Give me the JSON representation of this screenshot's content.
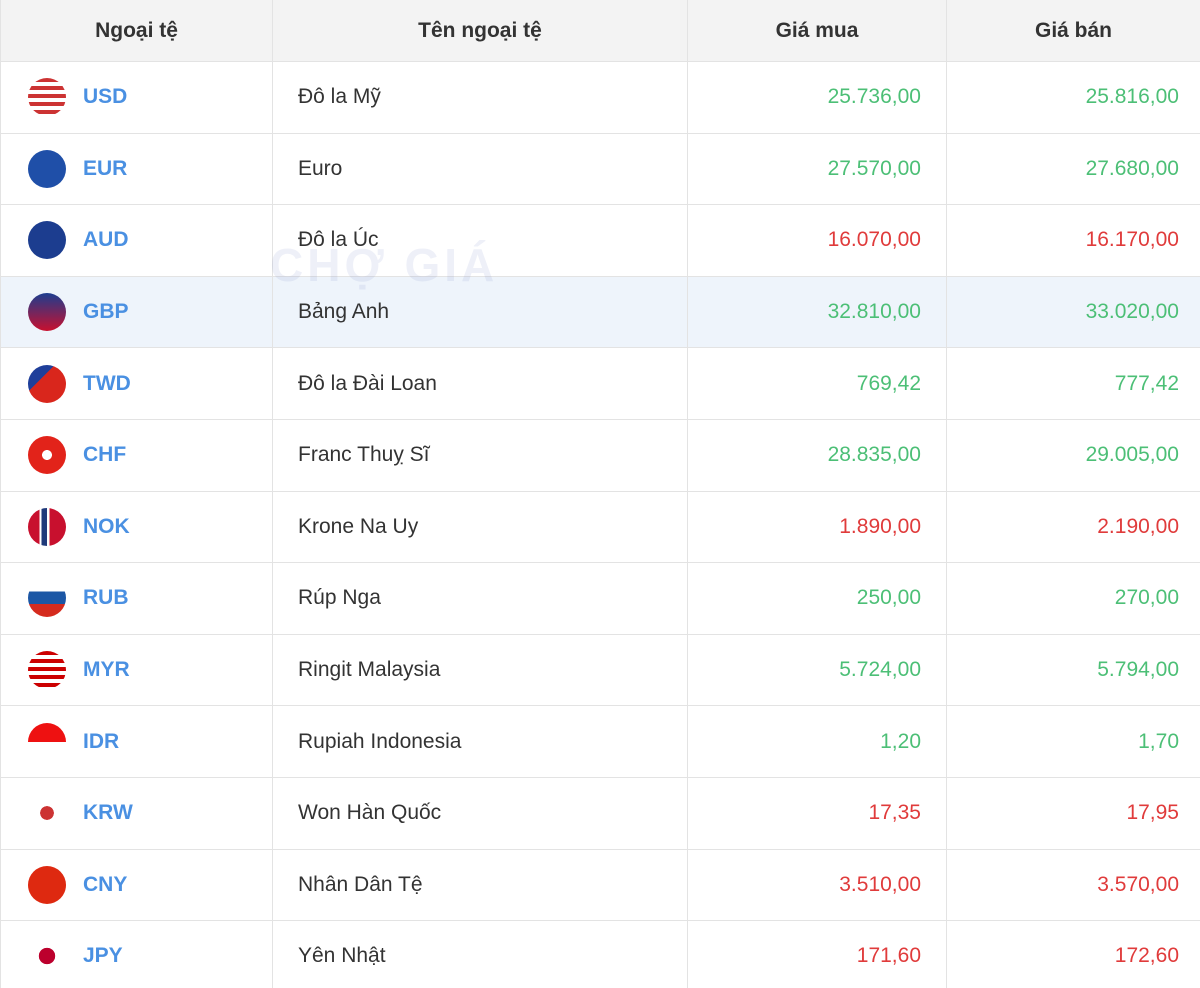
{
  "table": {
    "watermark": "CHỢ GIÁ",
    "highlight_row": 3,
    "header": [
      "Ngoại tệ",
      "Tên ngoại tệ",
      "Giá mua",
      "Giá bán"
    ],
    "rows": [
      {
        "code": "USD",
        "name": "Đô la Mỹ",
        "buy": "25.736,00",
        "sell": "25.816,00",
        "color": "#4cbf76"
      },
      {
        "code": "EUR",
        "name": "Euro",
        "buy": "27.570,00",
        "sell": "27.680,00",
        "color": "#4cbf76"
      },
      {
        "code": "AUD",
        "name": "Đô la Úc",
        "buy": "16.070,00",
        "sell": "16.170,00",
        "color": "#e03b3b"
      },
      {
        "code": "GBP",
        "name": "Bảng Anh",
        "buy": "32.810,00",
        "sell": "33.020,00",
        "color": "#4cbf76"
      },
      {
        "code": "TWD",
        "name": "Đô la Đài Loan",
        "buy": "769,42",
        "sell": "777,42",
        "color": "#4cbf76"
      },
      {
        "code": "CHF",
        "name": "Franc Thuỵ Sĩ",
        "buy": "28.835,00",
        "sell": "29.005,00",
        "color": "#4cbf76"
      },
      {
        "code": "NOK",
        "name": "Krone Na Uy",
        "buy": "1.890,00",
        "sell": "2.190,00",
        "color": "#e03b3b"
      },
      {
        "code": "RUB",
        "name": "Rúp Nga",
        "buy": "250,00",
        "sell": "270,00",
        "color": "#4cbf76"
      },
      {
        "code": "MYR",
        "name": "Ringit Malaysia",
        "buy": "5.724,00",
        "sell": "5.794,00",
        "color": "#4cbf76"
      },
      {
        "code": "IDR",
        "name": "Rupiah Indonesia",
        "buy": "1,20",
        "sell": "1,70",
        "color": "#4cbf76"
      },
      {
        "code": "KRW",
        "name": "Won Hàn Quốc",
        "buy": "17,35",
        "sell": "17,95",
        "color": "#e03b3b"
      },
      {
        "code": "CNY",
        "name": "Nhân Dân Tệ",
        "buy": "3.510,00",
        "sell": "3.570,00",
        "color": "#e03b3b"
      },
      {
        "code": "JPY",
        "name": "Yên Nhật",
        "buy": "171,60",
        "sell": "172,60",
        "color": "#e03b3b"
      }
    ]
  }
}
